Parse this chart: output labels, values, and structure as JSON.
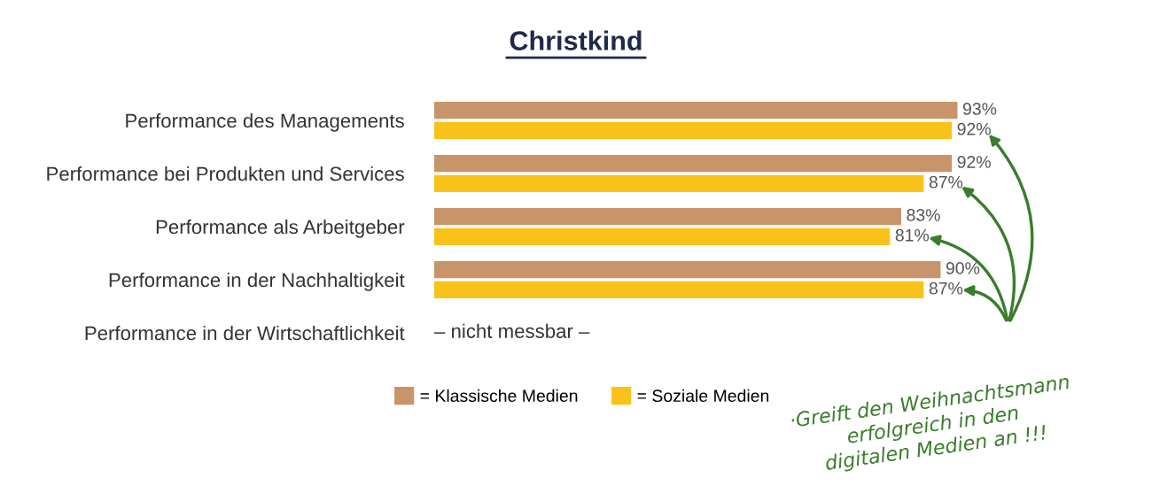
{
  "chart_data": {
    "type": "bar",
    "orientation": "horizontal",
    "title": "Christkind",
    "categories": [
      "Performance des Managements",
      "Performance bei Produkten und Services",
      "Performance als Arbeitgeber",
      "Performance in der Nachhaltigkeit",
      "Performance in der Wirtschaftlichkeit"
    ],
    "series": [
      {
        "name": "= Klassische Medien",
        "color": "#c8946a",
        "values": [
          93,
          92,
          83,
          90,
          null
        ],
        "value_labels": [
          "93%",
          "92%",
          "83%",
          "90%",
          null
        ]
      },
      {
        "name": "= Soziale Medien",
        "color": "#f9c21b",
        "values": [
          92,
          87,
          81,
          87,
          null
        ],
        "value_labels": [
          "92%",
          "87%",
          "81%",
          "87%",
          null
        ]
      }
    ],
    "legend": "bottom",
    "annotations": [
      "– nicht messbar –",
      "·Greift den Weihnachtsmann\nerfolgreich in den\ndigitalen Medien an !!!"
    ]
  }
}
